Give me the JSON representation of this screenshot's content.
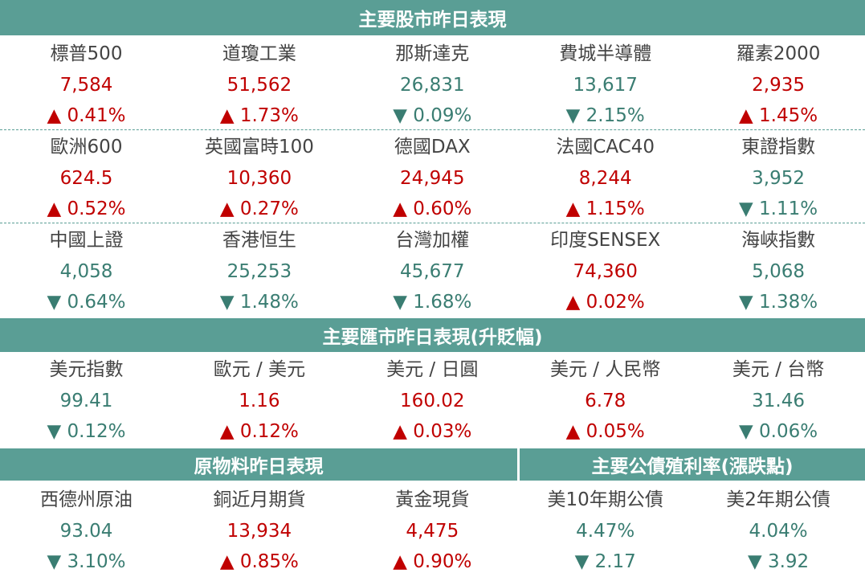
{
  "stocks": {
    "title": "主要股市昨日表現",
    "rows": [
      [
        {
          "name": "標普500",
          "value": "7,584",
          "change": "▲ 0.41%",
          "color": "#c00000"
        },
        {
          "name": "道瓊工業",
          "value": "51,562",
          "change": "▲ 1.73%",
          "color": "#c00000"
        },
        {
          "name": "那斯達克",
          "value": "26,831",
          "change": "▼ 0.09%",
          "color": "#3a7d72"
        },
        {
          "name": "費城半導體",
          "value": "13,617",
          "change": "▼ 2.15%",
          "color": "#3a7d72"
        },
        {
          "name": "羅素2000",
          "value": "2,935",
          "change": "▲ 1.45%",
          "color": "#c00000"
        }
      ],
      [
        {
          "name": "歐洲600",
          "value": "624.5",
          "change": "▲ 0.52%",
          "color": "#c00000"
        },
        {
          "name": "英國富時100",
          "value": "10,360",
          "change": "▲ 0.27%",
          "color": "#c00000"
        },
        {
          "name": "德國DAX",
          "value": "24,945",
          "change": "▲ 0.60%",
          "color": "#c00000"
        },
        {
          "name": "法國CAC40",
          "value": "8,244",
          "change": "▲ 1.15%",
          "color": "#c00000"
        },
        {
          "name": "東證指數",
          "value": "3,952",
          "change": "▼ 1.11%",
          "color": "#3a7d72"
        }
      ],
      [
        {
          "name": "中國上證",
          "value": "4,058",
          "change": "▼ 0.64%",
          "color": "#3a7d72"
        },
        {
          "name": "香港恒生",
          "value": "25,253",
          "change": "▼ 1.48%",
          "color": "#3a7d72"
        },
        {
          "name": "台灣加權",
          "value": "45,677",
          "change": "▼ 1.68%",
          "color": "#3a7d72"
        },
        {
          "name": "印度SENSEX",
          "value": "74,360",
          "change": "▲ 0.02%",
          "color": "#c00000"
        },
        {
          "name": "海峽指數",
          "value": "5,068",
          "change": "▼ 1.38%",
          "color": "#3a7d72"
        }
      ]
    ]
  },
  "fx": {
    "title": "主要匯市昨日表現(升貶幅)",
    "items": [
      {
        "name": "美元指數",
        "value": "99.41",
        "change": "▼ 0.12%",
        "color": "#3a7d72"
      },
      {
        "name": "歐元 / 美元",
        "value": "1.16",
        "change": "▲ 0.12%",
        "color": "#c00000"
      },
      {
        "name": "美元 / 日圓",
        "value": "160.02",
        "change": "▲ 0.03%",
        "color": "#c00000"
      },
      {
        "name": "美元 / 人民幣",
        "value": "6.78",
        "change": "▲ 0.05%",
        "color": "#c00000"
      },
      {
        "name": "美元 / 台幣",
        "value": "31.46",
        "change": "▼ 0.06%",
        "color": "#3a7d72"
      }
    ]
  },
  "commodities": {
    "title": "原物料昨日表現",
    "items": [
      {
        "name": "西德州原油",
        "value": "93.04",
        "change": "▼ 3.10%",
        "color": "#3a7d72"
      },
      {
        "name": "銅近月期貨",
        "value": "13,934",
        "change": "▲ 0.85%",
        "color": "#c00000"
      },
      {
        "name": "黃金現貨",
        "value": "4,475",
        "change": "▲ 0.90%",
        "color": "#c00000"
      }
    ]
  },
  "bonds": {
    "title": "主要公債殖利率(漲跌點)",
    "items": [
      {
        "name": "美10年期公債",
        "value": "4.47%",
        "change": "▼ 2.17",
        "color": "#3a7d72"
      },
      {
        "name": "美2年期公債",
        "value": "4.04%",
        "change": "▼ 3.92",
        "color": "#3a7d72"
      }
    ]
  }
}
